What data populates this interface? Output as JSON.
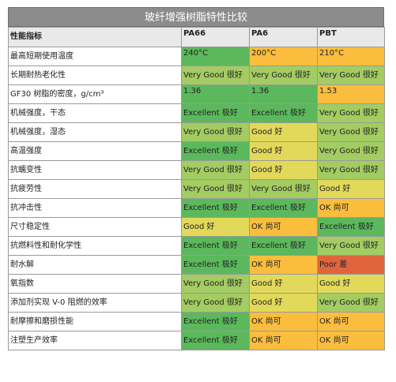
{
  "title": "玻纤增强树脂特性比较",
  "headers": [
    "性能指标",
    "PA66",
    "PA6",
    "PBT"
  ],
  "colors": {
    "excellent": "#5cb85c",
    "very_good": "#a3cc62",
    "good": "#e2d95a",
    "ok": "#fbbd3e",
    "poor": "#e0653f"
  },
  "rows": [
    {
      "label": "最高短期使用温度",
      "cells": [
        {
          "text": "240°C",
          "rating": "excellent"
        },
        {
          "text": "200°C",
          "rating": "ok"
        },
        {
          "text": "210°C",
          "rating": "ok"
        }
      ]
    },
    {
      "label": "长期耐热老化性",
      "cells": [
        {
          "text": "Very Good 很好",
          "rating": "very_good"
        },
        {
          "text": "Very Good 很好",
          "rating": "very_good"
        },
        {
          "text": "Very Good 很好",
          "rating": "very_good"
        }
      ]
    },
    {
      "label": "GF30 树脂的密度，g/cm³",
      "cells": [
        {
          "text": "1.36",
          "rating": "excellent"
        },
        {
          "text": "1.36",
          "rating": "excellent"
        },
        {
          "text": "1.53",
          "rating": "ok"
        }
      ]
    },
    {
      "label": "机械强度，干态",
      "cells": [
        {
          "text": "Excellent 极好",
          "rating": "excellent"
        },
        {
          "text": "Excellent 极好",
          "rating": "excellent"
        },
        {
          "text": "Very Good 很好",
          "rating": "very_good"
        }
      ]
    },
    {
      "label": "机械强度，湿态",
      "cells": [
        {
          "text": "Very Good 很好",
          "rating": "very_good"
        },
        {
          "text": "Good 好",
          "rating": "good"
        },
        {
          "text": "Very Good 很好",
          "rating": "very_good"
        }
      ]
    },
    {
      "label": "高温强度",
      "cells": [
        {
          "text": "Excellent 极好",
          "rating": "excellent"
        },
        {
          "text": "Good 好",
          "rating": "good"
        },
        {
          "text": "Very Good 很好",
          "rating": "very_good"
        }
      ]
    },
    {
      "label": "抗蠕变性",
      "cells": [
        {
          "text": "Very Good 很好",
          "rating": "very_good"
        },
        {
          "text": "Good 好",
          "rating": "good"
        },
        {
          "text": "Very Good 很好",
          "rating": "very_good"
        }
      ]
    },
    {
      "label": "抗疲劳性",
      "cells": [
        {
          "text": "Very Good 很好",
          "rating": "very_good"
        },
        {
          "text": "Very Good 很好",
          "rating": "very_good"
        },
        {
          "text": "Good 好",
          "rating": "good"
        }
      ]
    },
    {
      "label": "抗冲击性",
      "cells": [
        {
          "text": "Excellent 极好",
          "rating": "excellent"
        },
        {
          "text": "Excellent 极好",
          "rating": "excellent"
        },
        {
          "text": "OK 尚可",
          "rating": "ok"
        }
      ]
    },
    {
      "label": "尺寸稳定性",
      "cells": [
        {
          "text": "Good 好",
          "rating": "good"
        },
        {
          "text": "OK 尚可",
          "rating": "ok"
        },
        {
          "text": "Excellent 极好",
          "rating": "excellent"
        }
      ]
    },
    {
      "label": "抗燃料性和耐化学性",
      "cells": [
        {
          "text": "Excellent 极好",
          "rating": "excellent"
        },
        {
          "text": "Excellent 极好",
          "rating": "excellent"
        },
        {
          "text": "Very Good 很好",
          "rating": "very_good"
        }
      ]
    },
    {
      "label": "耐水解",
      "cells": [
        {
          "text": "Excellent 极好",
          "rating": "excellent"
        },
        {
          "text": "OK 尚可",
          "rating": "ok"
        },
        {
          "text": "Poor 差",
          "rating": "poor"
        }
      ]
    },
    {
      "label": "氧指数",
      "cells": [
        {
          "text": "Very Good 很好",
          "rating": "very_good"
        },
        {
          "text": "Good 好",
          "rating": "good"
        },
        {
          "text": "Good 好",
          "rating": "good"
        }
      ]
    },
    {
      "label": "添加剂实现 V-0 阻燃的效率",
      "cells": [
        {
          "text": "Very Good 很好",
          "rating": "very_good"
        },
        {
          "text": "Good 好",
          "rating": "good"
        },
        {
          "text": "Very Good 很好",
          "rating": "very_good"
        }
      ]
    },
    {
      "label": "耐摩擦和磨损性能",
      "cells": [
        {
          "text": "Excellent 极好",
          "rating": "excellent"
        },
        {
          "text": "OK 尚可",
          "rating": "ok"
        },
        {
          "text": "OK 尚可",
          "rating": "ok"
        }
      ]
    },
    {
      "label": "注塑生产效率",
      "cells": [
        {
          "text": "Excellent 极好",
          "rating": "excellent"
        },
        {
          "text": "OK 尚可",
          "rating": "ok"
        },
        {
          "text": "OK 尚可",
          "rating": "ok"
        }
      ]
    }
  ]
}
